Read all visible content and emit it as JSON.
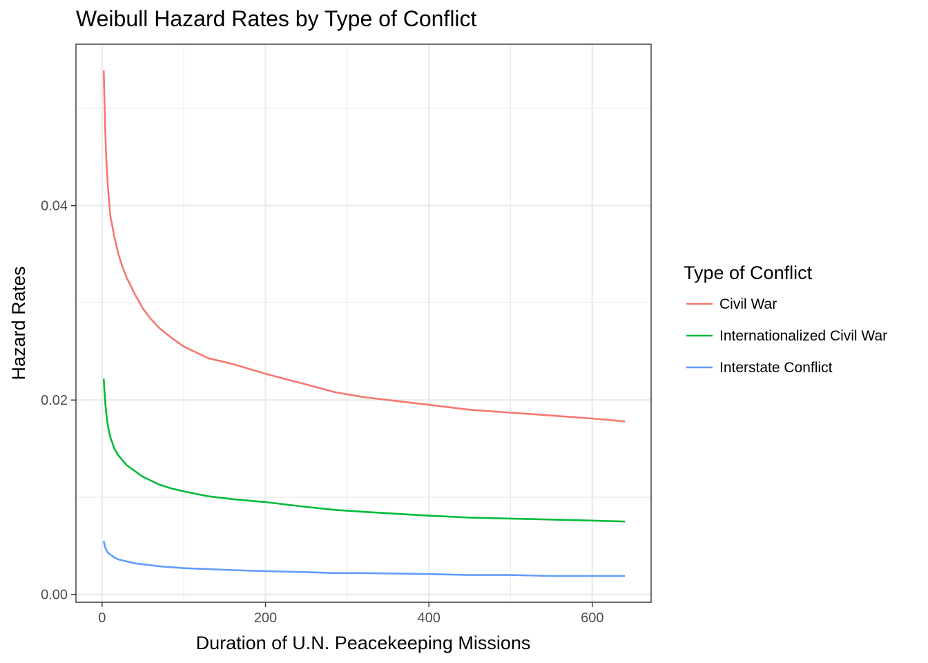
{
  "chart_data": {
    "type": "line",
    "title": "Weibull Hazard Rates by Type of Conflict",
    "xlabel": "Duration of U.N. Peacekeeping Missions",
    "ylabel": "Hazard Rates",
    "xlim": [
      -32,
      672
    ],
    "ylim": [
      -0.0008,
      0.0566
    ],
    "x_ticks": [
      0,
      200,
      400,
      600
    ],
    "x_tick_labels": [
      "0",
      "200",
      "400",
      "600"
    ],
    "y_ticks": [
      0.0,
      0.02,
      0.04
    ],
    "y_tick_labels": [
      "0.00",
      "0.02",
      "0.04"
    ],
    "x_minor": [
      100,
      300,
      500
    ],
    "y_minor": [
      0.01,
      0.03,
      0.05
    ],
    "grid": true,
    "legend_title": "Type of Conflict",
    "legend_position": "right",
    "series": [
      {
        "name": "Civil War",
        "color": "#F8766D",
        "x": [
          2,
          3,
          4,
          5,
          7,
          10,
          15,
          20,
          25,
          30,
          40,
          50,
          60,
          70,
          85,
          100,
          130,
          160,
          200,
          250,
          285,
          320,
          400,
          450,
          500,
          550,
          600,
          640
        ],
        "y": [
          0.0539,
          0.0505,
          0.0473,
          0.045,
          0.0421,
          0.039,
          0.0368,
          0.035,
          0.0337,
          0.0326,
          0.0309,
          0.0294,
          0.0283,
          0.0274,
          0.0264,
          0.0255,
          0.0243,
          0.0237,
          0.0227,
          0.0216,
          0.0208,
          0.0203,
          0.0195,
          0.019,
          0.0187,
          0.0184,
          0.0181,
          0.0178
        ]
      },
      {
        "name": "Internationalized Civil War",
        "color": "#00BA38",
        "x": [
          2,
          3,
          4,
          5,
          7,
          10,
          15,
          20,
          25,
          30,
          40,
          50,
          60,
          70,
          85,
          100,
          130,
          160,
          200,
          250,
          285,
          320,
          400,
          450,
          500,
          550,
          600,
          640
        ],
        "y": [
          0.0222,
          0.0208,
          0.0196,
          0.0187,
          0.0174,
          0.0162,
          0.015,
          0.0143,
          0.0138,
          0.0133,
          0.0127,
          0.0121,
          0.0117,
          0.0113,
          0.0109,
          0.0106,
          0.0101,
          0.0098,
          0.0095,
          0.009,
          0.0087,
          0.0085,
          0.0081,
          0.0079,
          0.0078,
          0.0077,
          0.0076,
          0.0075
        ]
      },
      {
        "name": "Interstate Conflict",
        "color": "#619CFF",
        "x": [
          2,
          3,
          4,
          5,
          7,
          10,
          15,
          20,
          25,
          30,
          40,
          50,
          60,
          70,
          85,
          100,
          130,
          160,
          200,
          250,
          285,
          320,
          400,
          450,
          500,
          550,
          600,
          640
        ],
        "y": [
          0.0055,
          0.0051,
          0.0048,
          0.0046,
          0.0043,
          0.0041,
          0.0038,
          0.0036,
          0.0035,
          0.0034,
          0.0032,
          0.0031,
          0.003,
          0.0029,
          0.0028,
          0.0027,
          0.0026,
          0.0025,
          0.0024,
          0.0023,
          0.0022,
          0.0022,
          0.0021,
          0.002,
          0.002,
          0.0019,
          0.0019,
          0.0019
        ]
      }
    ]
  }
}
